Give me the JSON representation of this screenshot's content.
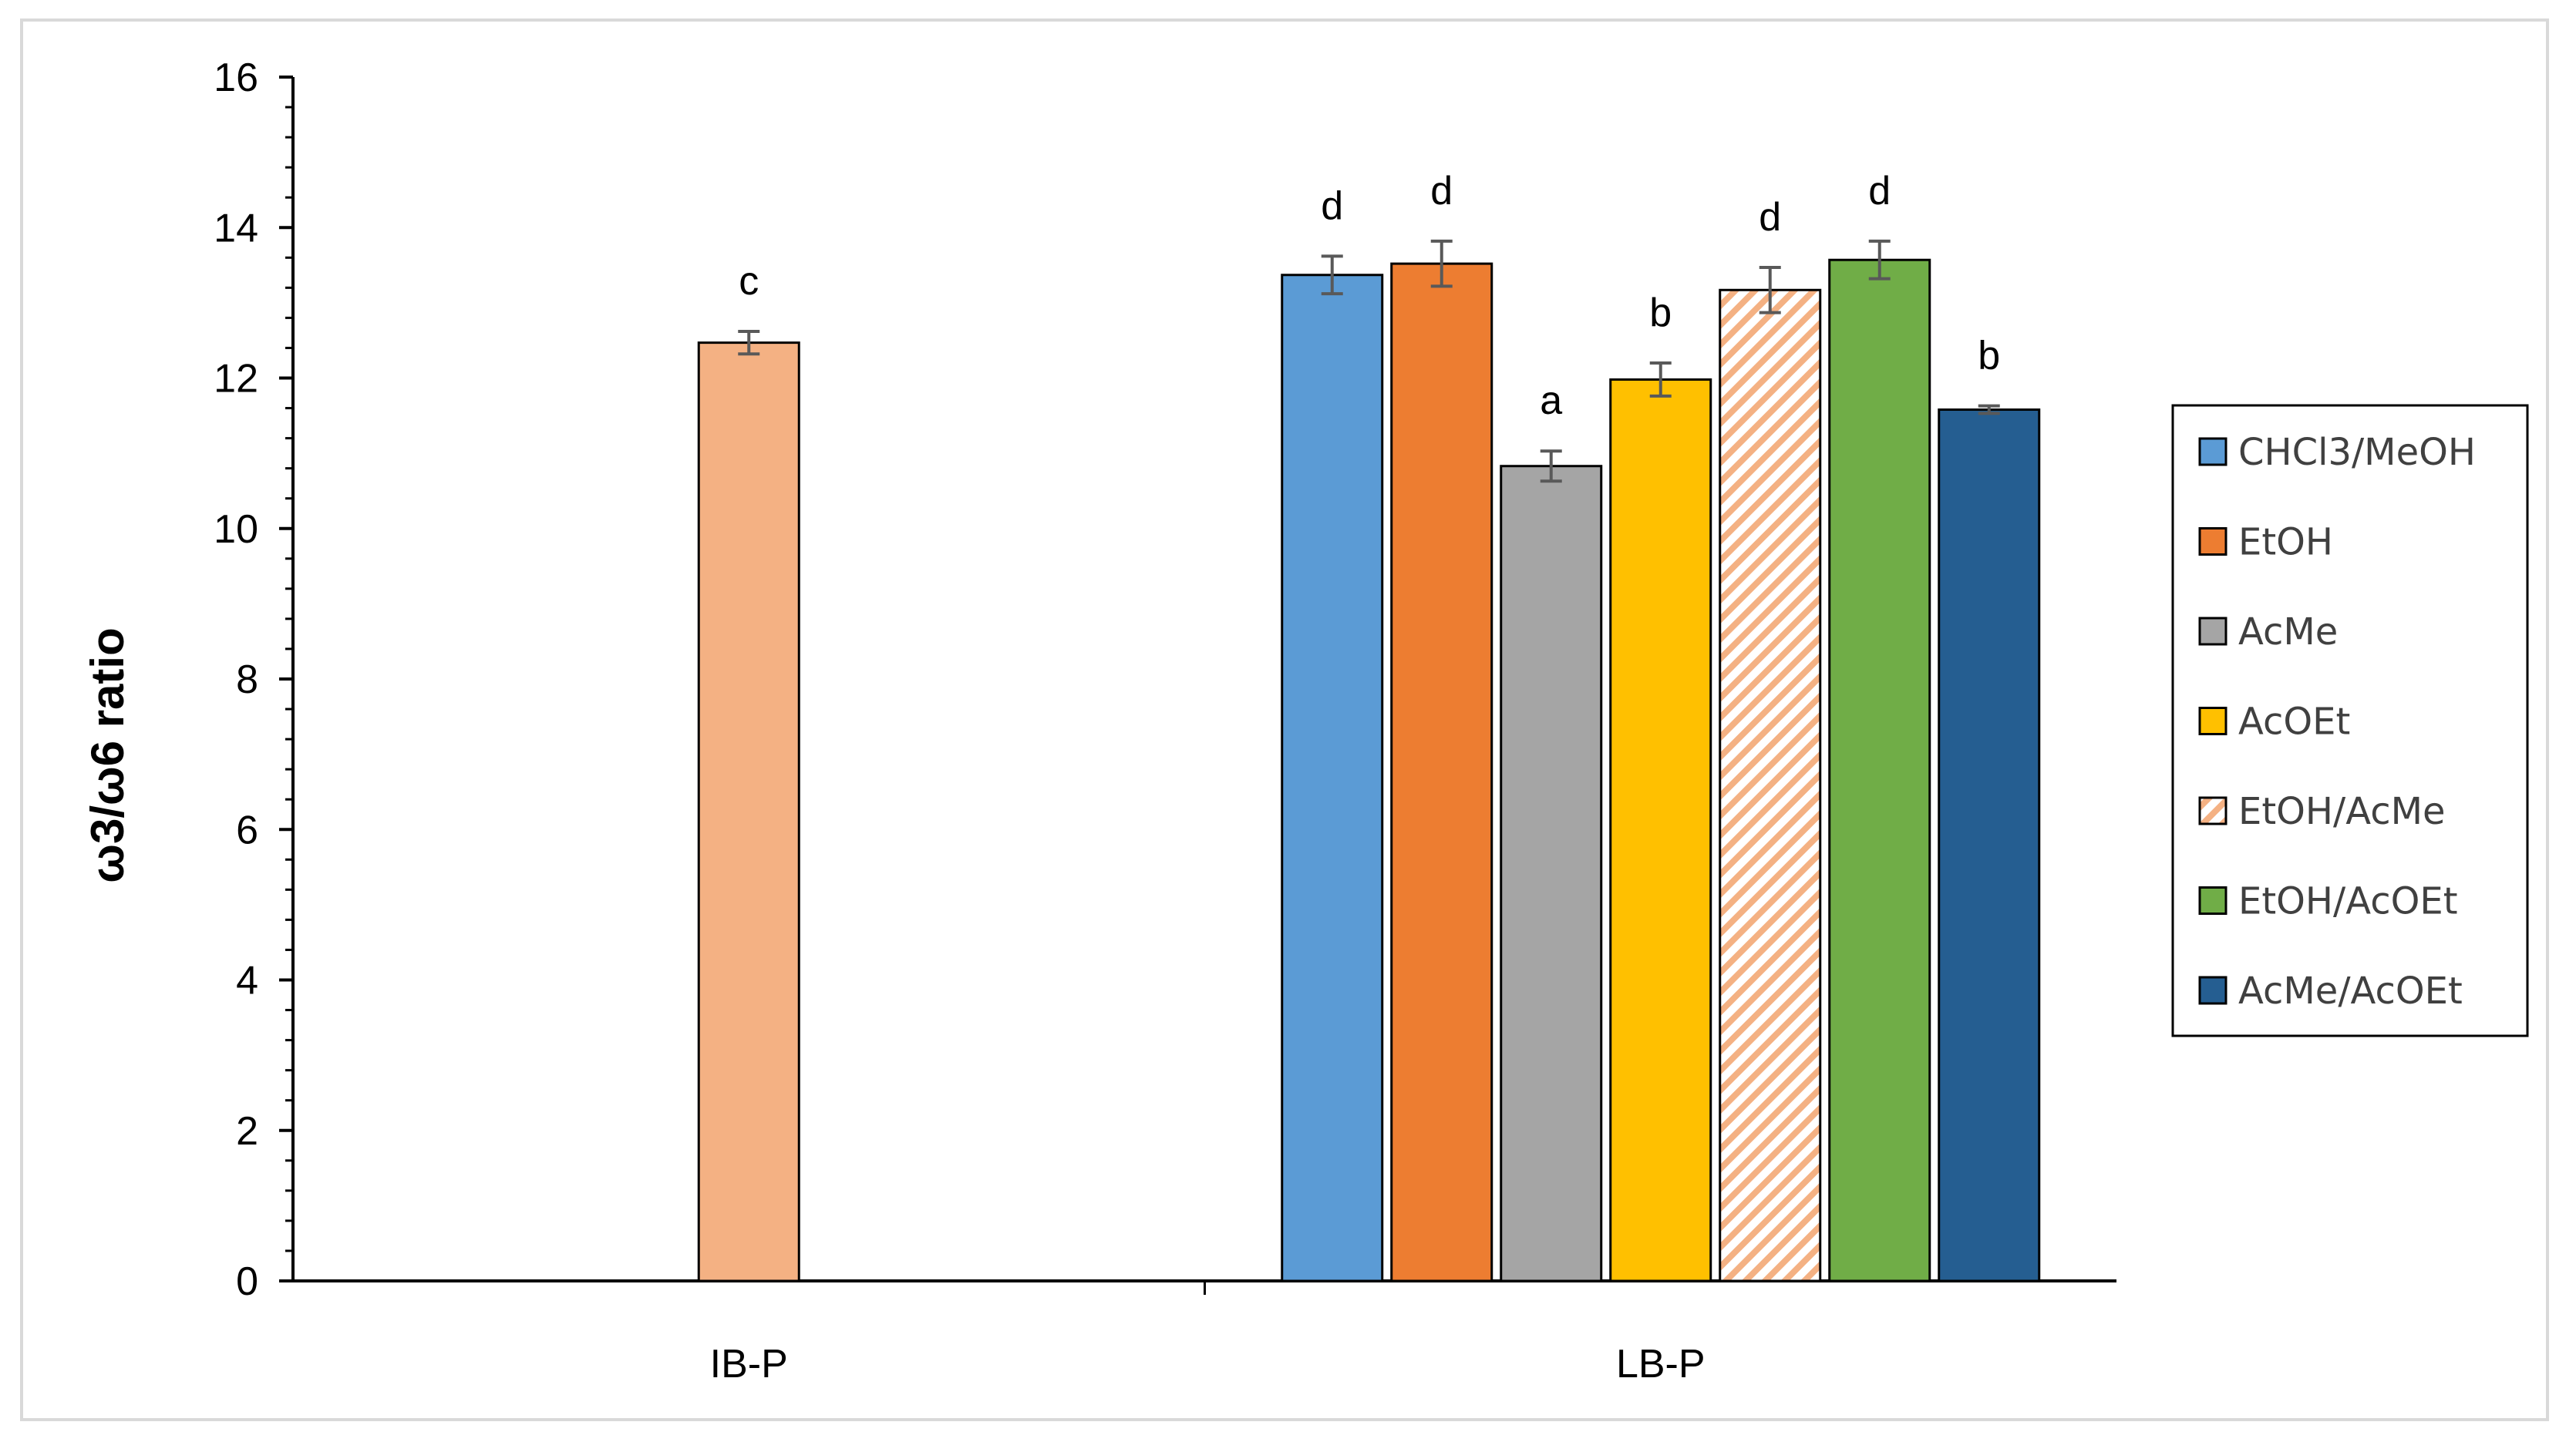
{
  "chart_data": {
    "type": "bar",
    "ylabel": "ω3/ω6 ratio",
    "ylim": [
      0,
      16
    ],
    "ytick_step": 2,
    "minor_ticks_per_major": 5,
    "categories": [
      "IB-P",
      "LB-P"
    ],
    "legend_position": "right",
    "bars": [
      {
        "category": "IB-P",
        "series": "",
        "value": 12.47,
        "error": 0.15,
        "letter": "c",
        "color": "#f4b183",
        "pattern": "solid"
      },
      {
        "category": "LB-P",
        "series": "CHCl3/MeOH",
        "value": 13.37,
        "error": 0.25,
        "letter": "d",
        "color": "#5b9bd5",
        "pattern": "solid"
      },
      {
        "category": "LB-P",
        "series": "EtOH",
        "value": 13.52,
        "error": 0.3,
        "letter": "d",
        "color": "#ed7d31",
        "pattern": "solid"
      },
      {
        "category": "LB-P",
        "series": "AcMe",
        "value": 10.83,
        "error": 0.2,
        "letter": "a",
        "color": "#a5a5a5",
        "pattern": "solid"
      },
      {
        "category": "LB-P",
        "series": "AcOEt",
        "value": 11.98,
        "error": 0.22,
        "letter": "b",
        "color": "#ffc000",
        "pattern": "solid"
      },
      {
        "category": "LB-P",
        "series": "EtOH/AcMe",
        "value": 13.17,
        "error": 0.3,
        "letter": "d",
        "color": "#f4b183",
        "pattern": "hatch"
      },
      {
        "category": "LB-P",
        "series": "EtOH/AcOEt",
        "value": 13.57,
        "error": 0.25,
        "letter": "d",
        "color": "#70ad47",
        "pattern": "solid"
      },
      {
        "category": "LB-P",
        "series": "AcMe/AcOEt",
        "value": 11.58,
        "error": 0.05,
        "letter": "b",
        "color": "#255e91",
        "pattern": "solid"
      }
    ],
    "legend": [
      {
        "label": "CHCl3/MeOH",
        "color": "#5b9bd5",
        "pattern": "solid"
      },
      {
        "label": "EtOH",
        "color": "#ed7d31",
        "pattern": "solid"
      },
      {
        "label": "AcMe",
        "color": "#a5a5a5",
        "pattern": "solid"
      },
      {
        "label": "AcOEt",
        "color": "#ffc000",
        "pattern": "solid"
      },
      {
        "label": "EtOH/AcMe",
        "color": "#f4b183",
        "pattern": "hatch"
      },
      {
        "label": "EtOH/AcOEt",
        "color": "#70ad47",
        "pattern": "solid"
      },
      {
        "label": "AcMe/AcOEt",
        "color": "#255e91",
        "pattern": "solid"
      }
    ]
  }
}
